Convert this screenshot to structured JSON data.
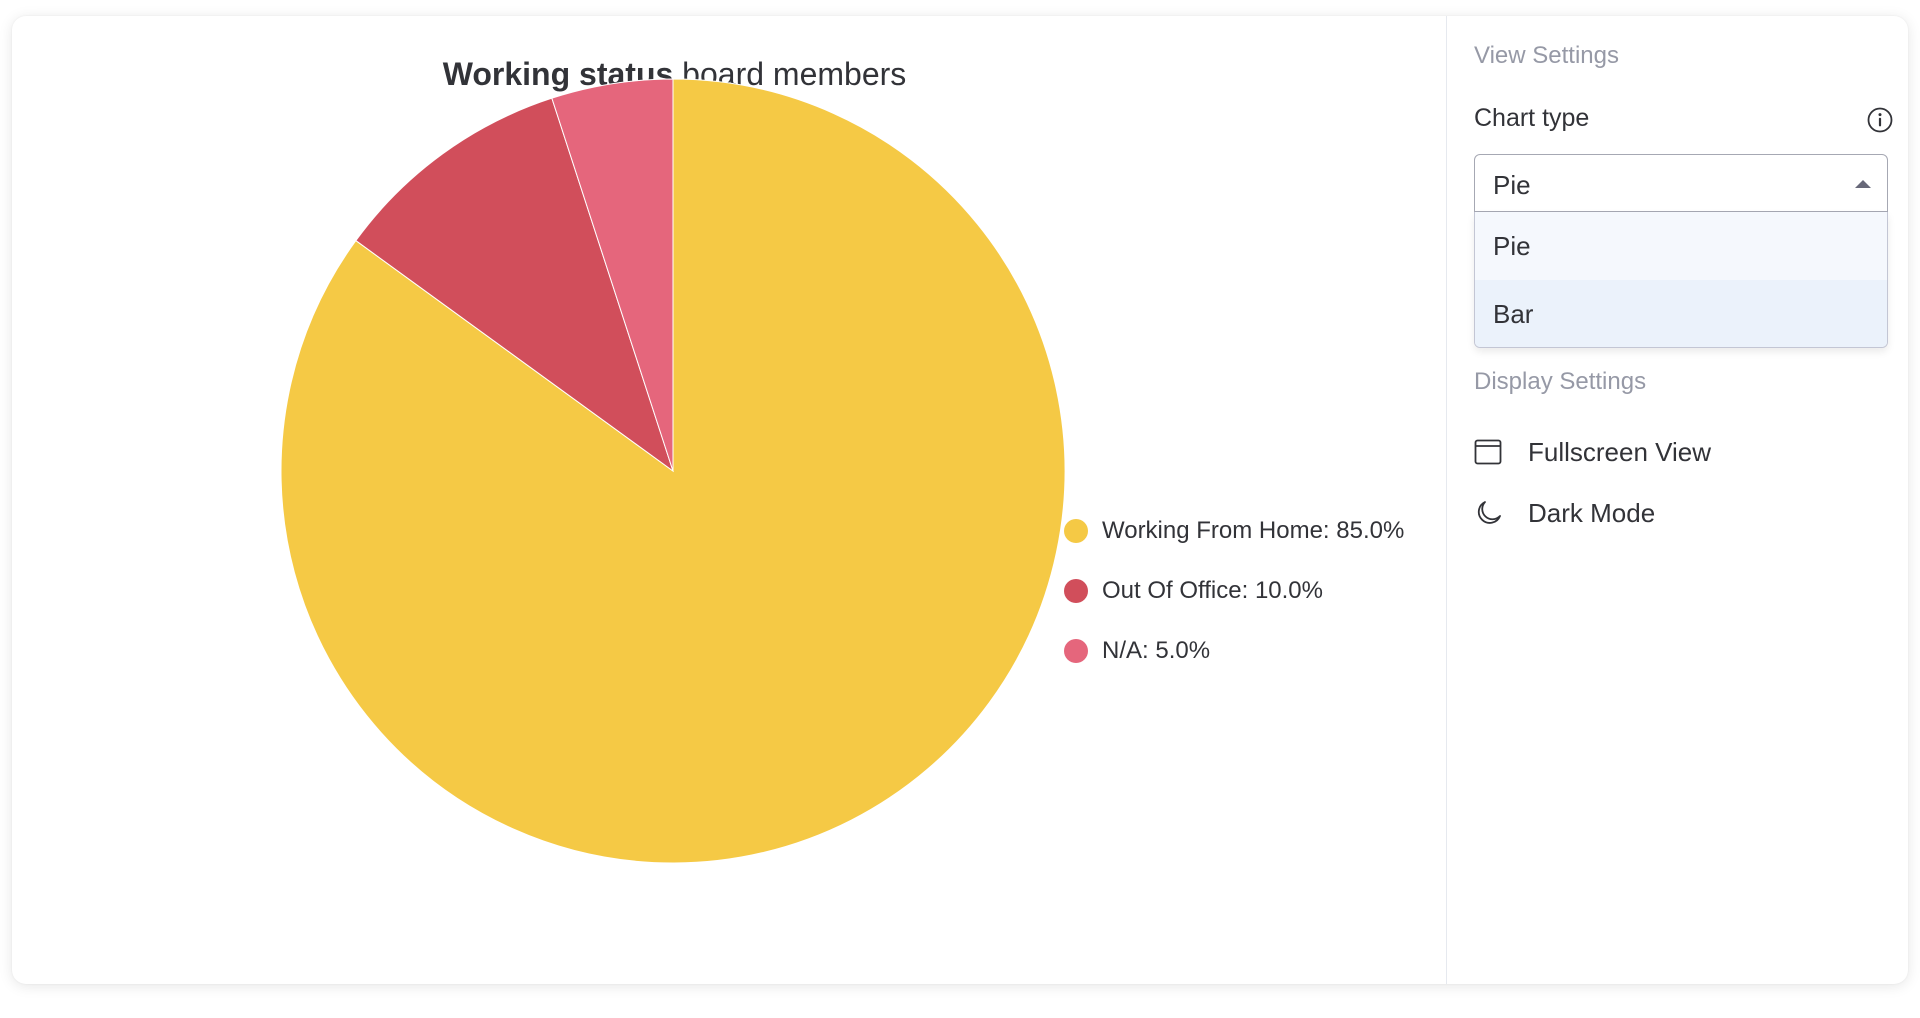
{
  "chart_title": {
    "bold_part": "Working status",
    "regular_part": "board members"
  },
  "legend": [
    {
      "label": "Working From Home: 85.0%",
      "color": "#f5c945"
    },
    {
      "label": "Out Of Office: 10.0%",
      "color": "#d14e5b"
    },
    {
      "label": "N/A: 5.0%",
      "color": "#e5667c"
    }
  ],
  "chart_data": {
    "type": "pie",
    "title": "Working status board members",
    "categories": [
      "Working From Home",
      "Out Of Office",
      "N/A"
    ],
    "values": [
      85.0,
      10.0,
      5.0
    ],
    "unit": "%",
    "colors": [
      "#f5c945",
      "#d14e5b",
      "#e5667c"
    ],
    "legend_placement": "right"
  },
  "settings": {
    "view_settings_title": "View Settings",
    "chart_type_label": "Chart type",
    "chart_type_selected": "Pie",
    "chart_type_options": [
      "Pie",
      "Bar"
    ],
    "display_settings_title": "Display Settings",
    "fullscreen_label": "Fullscreen View",
    "dark_mode_label": "Dark Mode"
  },
  "icons": {
    "info": "info-icon",
    "fullscreen": "window-icon",
    "dark_mode": "moon-icon",
    "dropdown_arrow": "caret-up-icon"
  }
}
